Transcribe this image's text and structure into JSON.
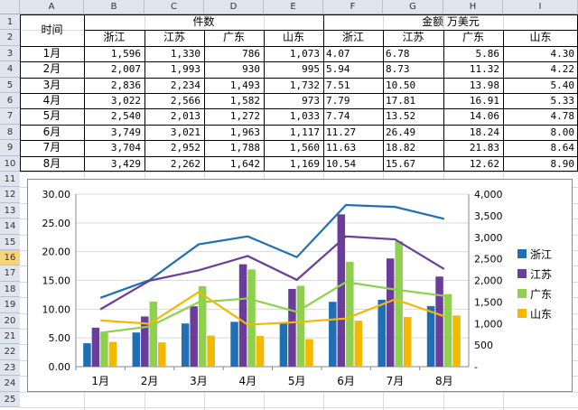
{
  "columns": [
    "A",
    "B",
    "C",
    "D",
    "E",
    "F",
    "G",
    "H",
    "I"
  ],
  "rows": [
    "1",
    "2",
    "3",
    "4",
    "5",
    "6",
    "7",
    "8",
    "9",
    "10",
    "11",
    "12",
    "13",
    "14",
    "15",
    "16",
    "17",
    "18",
    "19",
    "20",
    "21",
    "22",
    "23",
    "24",
    "25"
  ],
  "selected_row": "16",
  "table": {
    "time_label": "时间",
    "group1_label": "件数",
    "group2_label": "金额 万美元",
    "sub_headers": [
      "浙江",
      "江苏",
      "广东",
      "山东",
      "浙江",
      "江苏",
      "广东",
      "山东"
    ],
    "data_rows": [
      {
        "month": "1月",
        "v": [
          "1,596",
          "1,330",
          "786",
          "1,073",
          "4.07",
          "6.78",
          "5.86",
          "4.30"
        ]
      },
      {
        "month": "2月",
        "v": [
          "2,007",
          "1,993",
          "930",
          "995",
          "5.94",
          "8.73",
          "11.32",
          "4.22"
        ]
      },
      {
        "month": "3月",
        "v": [
          "2,836",
          "2,234",
          "1,493",
          "1,732",
          "7.51",
          "10.50",
          "13.98",
          "5.40"
        ]
      },
      {
        "month": "4月",
        "v": [
          "3,022",
          "2,566",
          "1,582",
          "973",
          "7.79",
          "17.81",
          "16.91",
          "5.33"
        ]
      },
      {
        "month": "5月",
        "v": [
          "2,540",
          "2,013",
          "1,272",
          "1,033",
          "7.74",
          "13.52",
          "14.06",
          "4.78"
        ]
      },
      {
        "month": "6月",
        "v": [
          "3,749",
          "3,021",
          "1,963",
          "1,117",
          "11.27",
          "26.49",
          "18.24",
          "8.00"
        ]
      },
      {
        "month": "7月",
        "v": [
          "3,704",
          "2,952",
          "1,788",
          "1,560",
          "11.63",
          "18.82",
          "21.83",
          "8.64"
        ]
      },
      {
        "month": "8月",
        "v": [
          "3,429",
          "2,262",
          "1,642",
          "1,169",
          "10.54",
          "15.67",
          "12.62",
          "8.90"
        ]
      }
    ]
  },
  "chart_data": {
    "type": "bar",
    "categories": [
      "1月",
      "2月",
      "3月",
      "4月",
      "5月",
      "6月",
      "7月",
      "8月"
    ],
    "y_left_ticks": [
      "0.00",
      "5.00",
      "10.00",
      "15.00",
      "20.00",
      "25.00",
      "30.00"
    ],
    "y_left_range": [
      0,
      30
    ],
    "y_right_ticks": [
      "-",
      "500",
      "1,000",
      "1,500",
      "2,000",
      "2,500",
      "3,000",
      "3,500",
      "4,000"
    ],
    "y_right_range": [
      0,
      4000
    ],
    "bar_series": [
      {
        "name": "浙江",
        "color": "#1f6fb4",
        "values": [
          4.07,
          5.94,
          7.51,
          7.79,
          7.74,
          11.27,
          11.63,
          10.54
        ]
      },
      {
        "name": "江苏",
        "color": "#6a3d9a",
        "values": [
          6.78,
          8.73,
          10.5,
          17.81,
          13.52,
          26.49,
          18.82,
          15.67
        ]
      },
      {
        "name": "广东",
        "color": "#8fd14f",
        "values": [
          5.86,
          11.32,
          13.98,
          16.91,
          14.06,
          18.24,
          21.83,
          12.62
        ]
      },
      {
        "name": "山东",
        "color": "#f5b800",
        "values": [
          4.3,
          4.22,
          5.4,
          5.33,
          4.78,
          8.0,
          8.64,
          8.9
        ]
      }
    ],
    "line_series": [
      {
        "color": "#1f6fb4",
        "values": [
          1596,
          2007,
          2836,
          3022,
          2540,
          3749,
          3704,
          3429
        ]
      },
      {
        "color": "#6a3d9a",
        "values": [
          1330,
          1993,
          2234,
          2566,
          2013,
          3021,
          2952,
          2262
        ]
      },
      {
        "color": "#8fd14f",
        "values": [
          786,
          930,
          1493,
          1582,
          1272,
          1963,
          1788,
          1642
        ]
      },
      {
        "color": "#f5b800",
        "values": [
          1073,
          995,
          1732,
          973,
          1033,
          1117,
          1560,
          1169
        ]
      }
    ],
    "legend": [
      "浙江",
      "江苏",
      "广东",
      "山东"
    ],
    "legend_position": "right",
    "grid": true
  }
}
